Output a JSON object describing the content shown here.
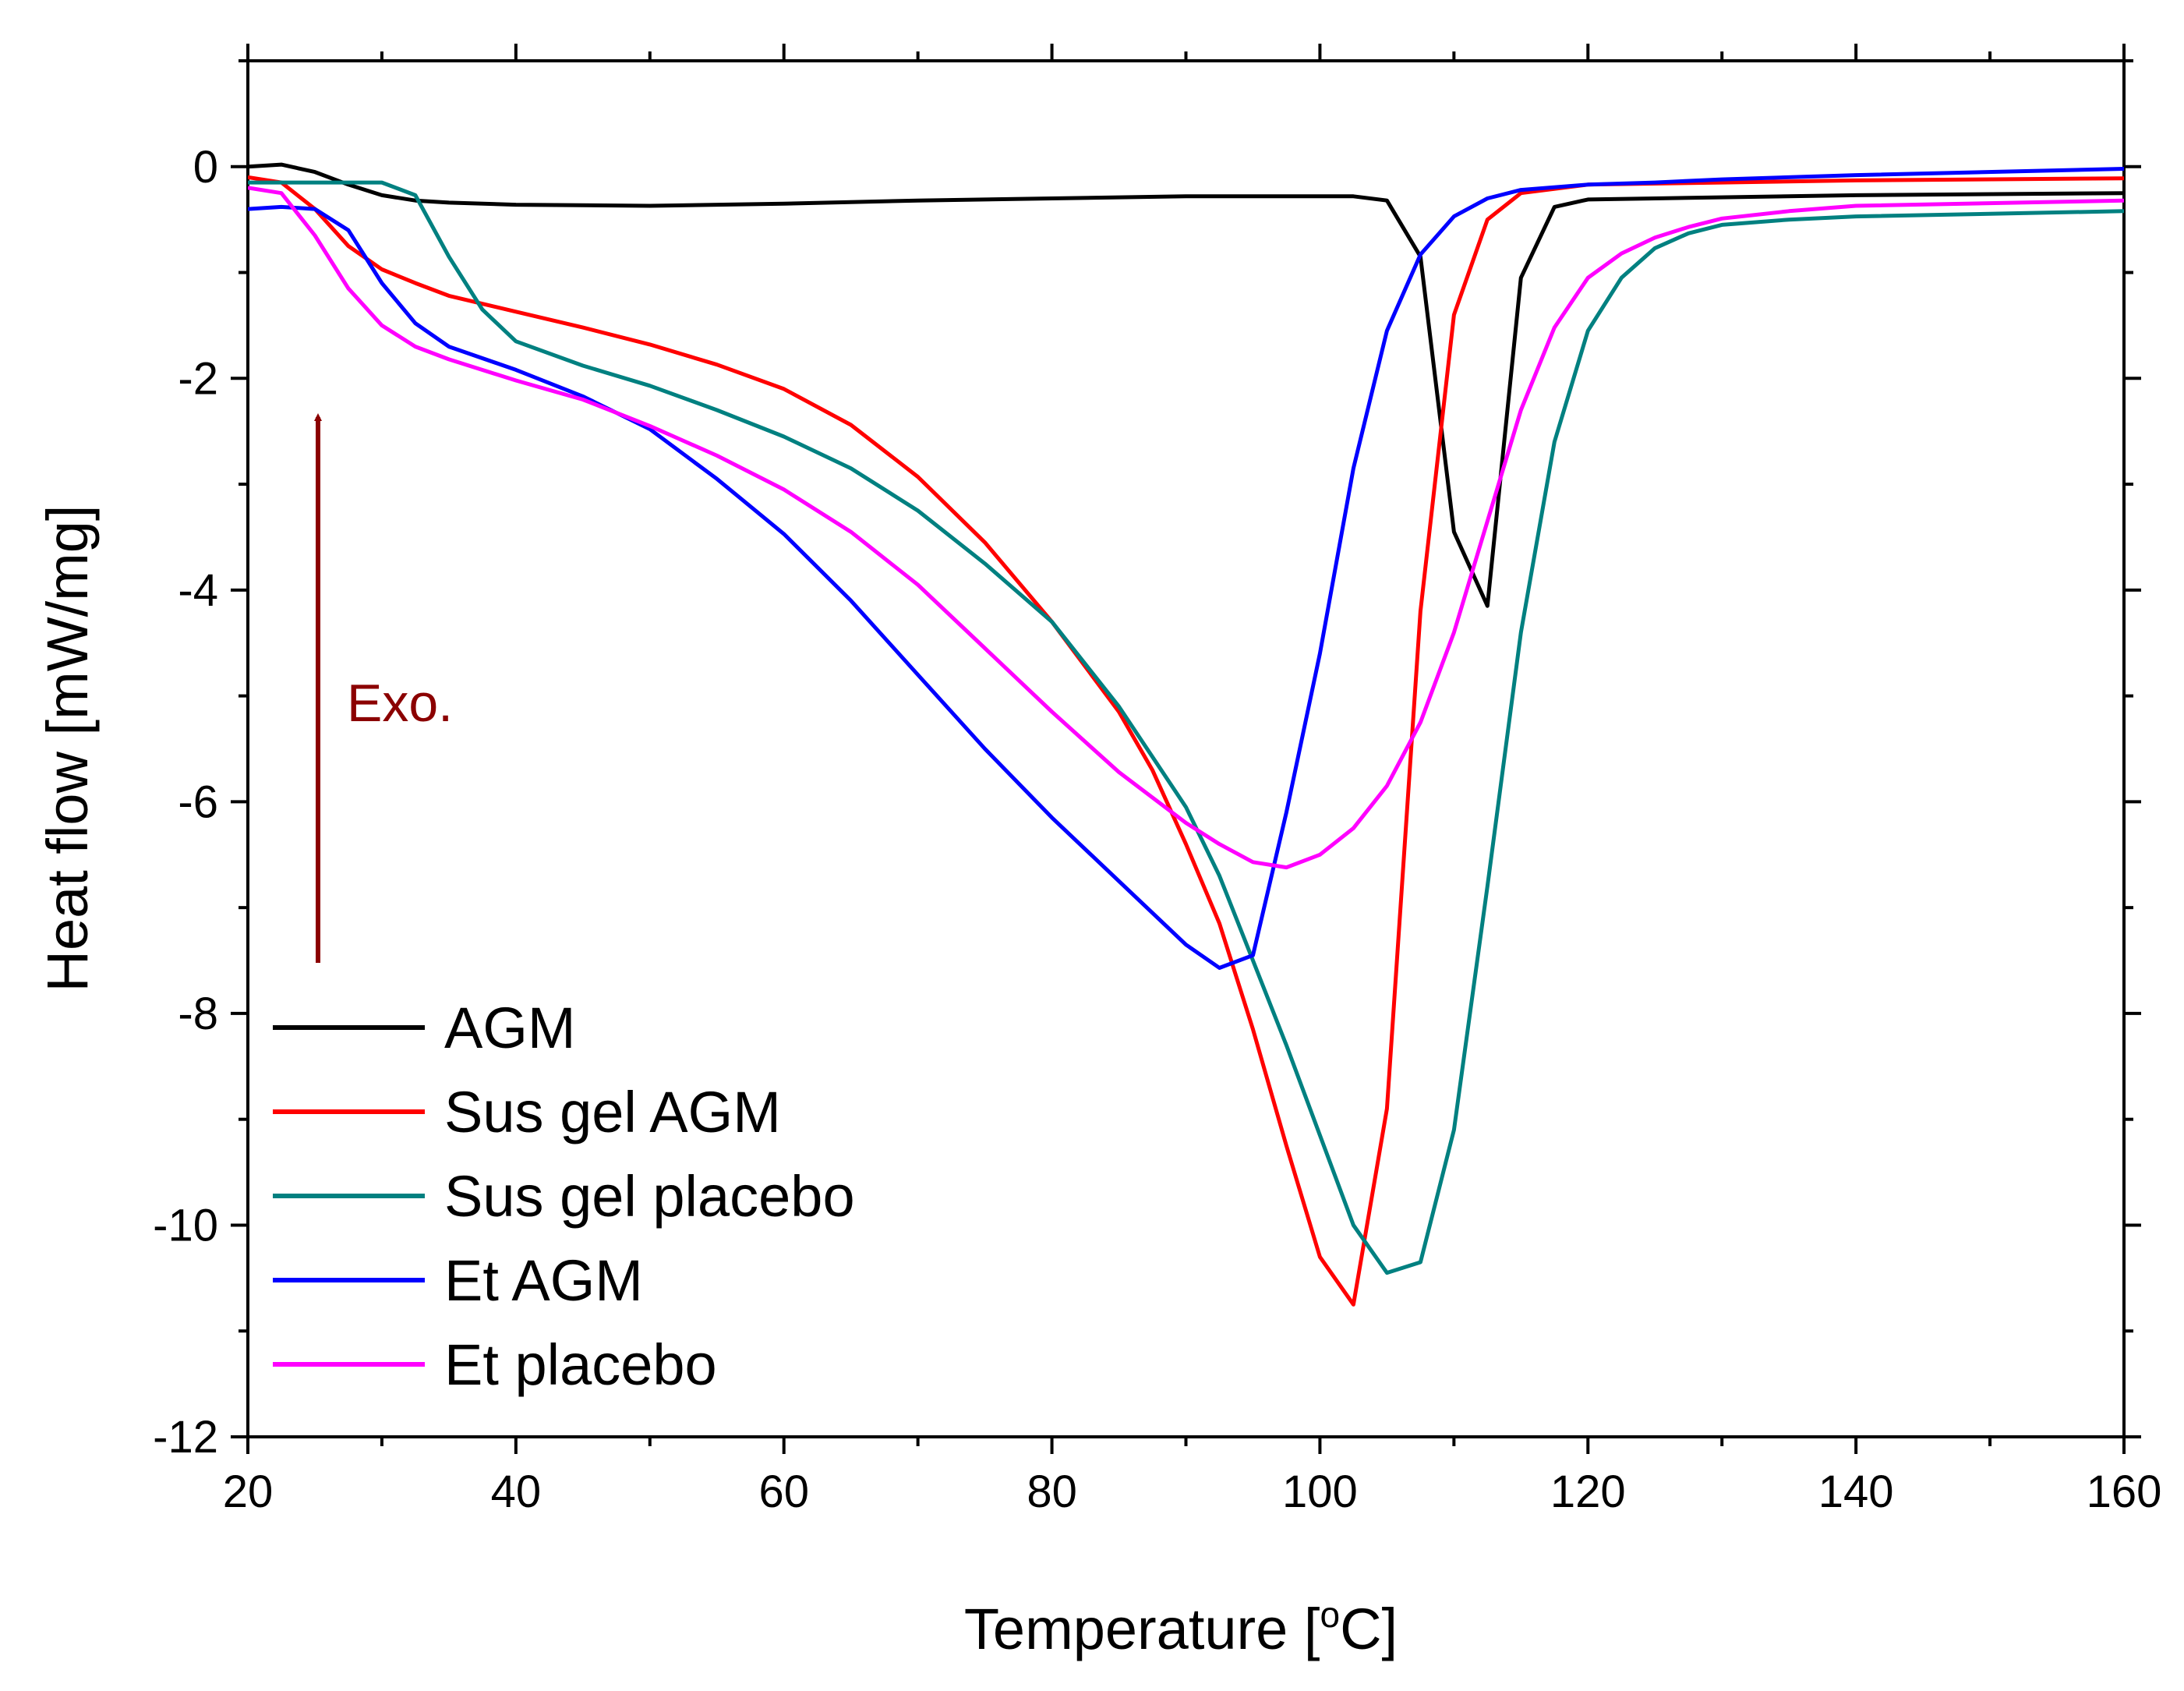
{
  "chart_data": {
    "type": "line",
    "title": "",
    "xlabel": "Temperature [°C]",
    "xlabel_main": "Temperature [",
    "xlabel_sup": "o",
    "xlabel_end": "C]",
    "ylabel": "Heat flow [mW/mg]",
    "xlim": [
      20,
      160
    ],
    "ylim": [
      -12,
      1
    ],
    "x_ticks": [
      20,
      40,
      60,
      80,
      100,
      120,
      140,
      160
    ],
    "y_ticks": [
      0,
      -2,
      -4,
      -6,
      -8,
      -10,
      -12
    ],
    "legend_position": "bottom-left",
    "annotation": {
      "text": "Exo.",
      "color": "#8b0000",
      "arrow_direction": "up"
    },
    "series": [
      {
        "name": "AGM",
        "color": "#000000",
        "points": [
          [
            20,
            0.0
          ],
          [
            22.5,
            0.02
          ],
          [
            25,
            -0.05
          ],
          [
            27.5,
            -0.17
          ],
          [
            30,
            -0.27
          ],
          [
            32.5,
            -0.32
          ],
          [
            35,
            -0.34
          ],
          [
            40,
            -0.36
          ],
          [
            50,
            -0.37
          ],
          [
            60,
            -0.35
          ],
          [
            70,
            -0.32
          ],
          [
            80,
            -0.3
          ],
          [
            90,
            -0.28
          ],
          [
            100,
            -0.28
          ],
          [
            102.5,
            -0.28
          ],
          [
            105,
            -0.32
          ],
          [
            107.5,
            -0.85
          ],
          [
            110,
            -3.45
          ],
          [
            112.5,
            -4.15
          ],
          [
            115,
            -1.05
          ],
          [
            117.5,
            -0.38
          ],
          [
            120,
            -0.31
          ],
          [
            125,
            -0.3
          ],
          [
            140,
            -0.27
          ],
          [
            160,
            -0.25
          ]
        ]
      },
      {
        "name": "Sus gel AGM",
        "color": "#ff0000",
        "points": [
          [
            20,
            -0.1
          ],
          [
            22.5,
            -0.15
          ],
          [
            25,
            -0.4
          ],
          [
            27.5,
            -0.75
          ],
          [
            30,
            -0.97
          ],
          [
            32.5,
            -1.1
          ],
          [
            35,
            -1.22
          ],
          [
            40,
            -1.37
          ],
          [
            45,
            -1.52
          ],
          [
            50,
            -1.68
          ],
          [
            55,
            -1.87
          ],
          [
            60,
            -2.1
          ],
          [
            65,
            -2.44
          ],
          [
            70,
            -2.93
          ],
          [
            75,
            -3.55
          ],
          [
            80,
            -4.3
          ],
          [
            85,
            -5.15
          ],
          [
            87.5,
            -5.7
          ],
          [
            90,
            -6.4
          ],
          [
            92.5,
            -7.15
          ],
          [
            95,
            -8.15
          ],
          [
            97.5,
            -9.25
          ],
          [
            100,
            -10.3
          ],
          [
            102.5,
            -10.75
          ],
          [
            105,
            -8.9
          ],
          [
            107.5,
            -4.2
          ],
          [
            110,
            -1.4
          ],
          [
            112.5,
            -0.5
          ],
          [
            115,
            -0.25
          ],
          [
            120,
            -0.17
          ],
          [
            130,
            -0.15
          ],
          [
            140,
            -0.13
          ],
          [
            160,
            -0.11
          ]
        ]
      },
      {
        "name": "Sus gel placebo",
        "color": "#008080",
        "points": [
          [
            20,
            -0.15
          ],
          [
            25,
            -0.15
          ],
          [
            27.5,
            -0.15
          ],
          [
            30,
            -0.15
          ],
          [
            32.5,
            -0.27
          ],
          [
            35,
            -0.85
          ],
          [
            37.5,
            -1.35
          ],
          [
            40,
            -1.65
          ],
          [
            45,
            -1.88
          ],
          [
            50,
            -2.07
          ],
          [
            55,
            -2.3
          ],
          [
            60,
            -2.55
          ],
          [
            65,
            -2.85
          ],
          [
            70,
            -3.25
          ],
          [
            75,
            -3.75
          ],
          [
            80,
            -4.3
          ],
          [
            85,
            -5.1
          ],
          [
            90,
            -6.05
          ],
          [
            92.5,
            -6.7
          ],
          [
            95,
            -7.5
          ],
          [
            97.5,
            -8.3
          ],
          [
            100,
            -9.15
          ],
          [
            102.5,
            -10.0
          ],
          [
            105,
            -10.45
          ],
          [
            107.5,
            -10.35
          ],
          [
            110,
            -9.1
          ],
          [
            112.5,
            -6.8
          ],
          [
            115,
            -4.4
          ],
          [
            117.5,
            -2.6
          ],
          [
            120,
            -1.55
          ],
          [
            122.5,
            -1.05
          ],
          [
            125,
            -0.77
          ],
          [
            127.5,
            -0.63
          ],
          [
            130,
            -0.55
          ],
          [
            135,
            -0.5
          ],
          [
            140,
            -0.47
          ],
          [
            160,
            -0.42
          ]
        ]
      },
      {
        "name": "Et AGM",
        "color": "#0000ff",
        "points": [
          [
            20,
            -0.4
          ],
          [
            22.5,
            -0.38
          ],
          [
            25,
            -0.4
          ],
          [
            27.5,
            -0.6
          ],
          [
            30,
            -1.1
          ],
          [
            32.5,
            -1.48
          ],
          [
            35,
            -1.7
          ],
          [
            40,
            -1.92
          ],
          [
            45,
            -2.17
          ],
          [
            50,
            -2.48
          ],
          [
            55,
            -2.95
          ],
          [
            60,
            -3.47
          ],
          [
            65,
            -4.1
          ],
          [
            70,
            -4.8
          ],
          [
            75,
            -5.5
          ],
          [
            80,
            -6.15
          ],
          [
            85,
            -6.75
          ],
          [
            90,
            -7.35
          ],
          [
            92.5,
            -7.57
          ],
          [
            95,
            -7.45
          ],
          [
            97.5,
            -6.1
          ],
          [
            100,
            -4.6
          ],
          [
            102.5,
            -2.85
          ],
          [
            105,
            -1.55
          ],
          [
            107.5,
            -0.83
          ],
          [
            110,
            -0.47
          ],
          [
            112.5,
            -0.3
          ],
          [
            115,
            -0.22
          ],
          [
            120,
            -0.17
          ],
          [
            125,
            -0.15
          ],
          [
            130,
            -0.12
          ],
          [
            140,
            -0.08
          ],
          [
            160,
            -0.02
          ]
        ]
      },
      {
        "name": "Et placebo",
        "color": "#ff00ff",
        "points": [
          [
            20,
            -0.2
          ],
          [
            22.5,
            -0.25
          ],
          [
            25,
            -0.65
          ],
          [
            27.5,
            -1.15
          ],
          [
            30,
            -1.5
          ],
          [
            32.5,
            -1.7
          ],
          [
            35,
            -1.82
          ],
          [
            40,
            -2.02
          ],
          [
            45,
            -2.2
          ],
          [
            50,
            -2.45
          ],
          [
            55,
            -2.73
          ],
          [
            60,
            -3.05
          ],
          [
            65,
            -3.45
          ],
          [
            70,
            -3.95
          ],
          [
            75,
            -4.55
          ],
          [
            80,
            -5.15
          ],
          [
            85,
            -5.72
          ],
          [
            90,
            -6.2
          ],
          [
            92.5,
            -6.4
          ],
          [
            95,
            -6.57
          ],
          [
            97.5,
            -6.62
          ],
          [
            100,
            -6.5
          ],
          [
            102.5,
            -6.25
          ],
          [
            105,
            -5.85
          ],
          [
            107.5,
            -5.25
          ],
          [
            110,
            -4.4
          ],
          [
            112.5,
            -3.35
          ],
          [
            115,
            -2.3
          ],
          [
            117.5,
            -1.52
          ],
          [
            120,
            -1.05
          ],
          [
            122.5,
            -0.82
          ],
          [
            125,
            -0.67
          ],
          [
            127.5,
            -0.57
          ],
          [
            130,
            -0.49
          ],
          [
            135,
            -0.42
          ],
          [
            140,
            -0.37
          ],
          [
            160,
            -0.32
          ]
        ]
      }
    ]
  }
}
